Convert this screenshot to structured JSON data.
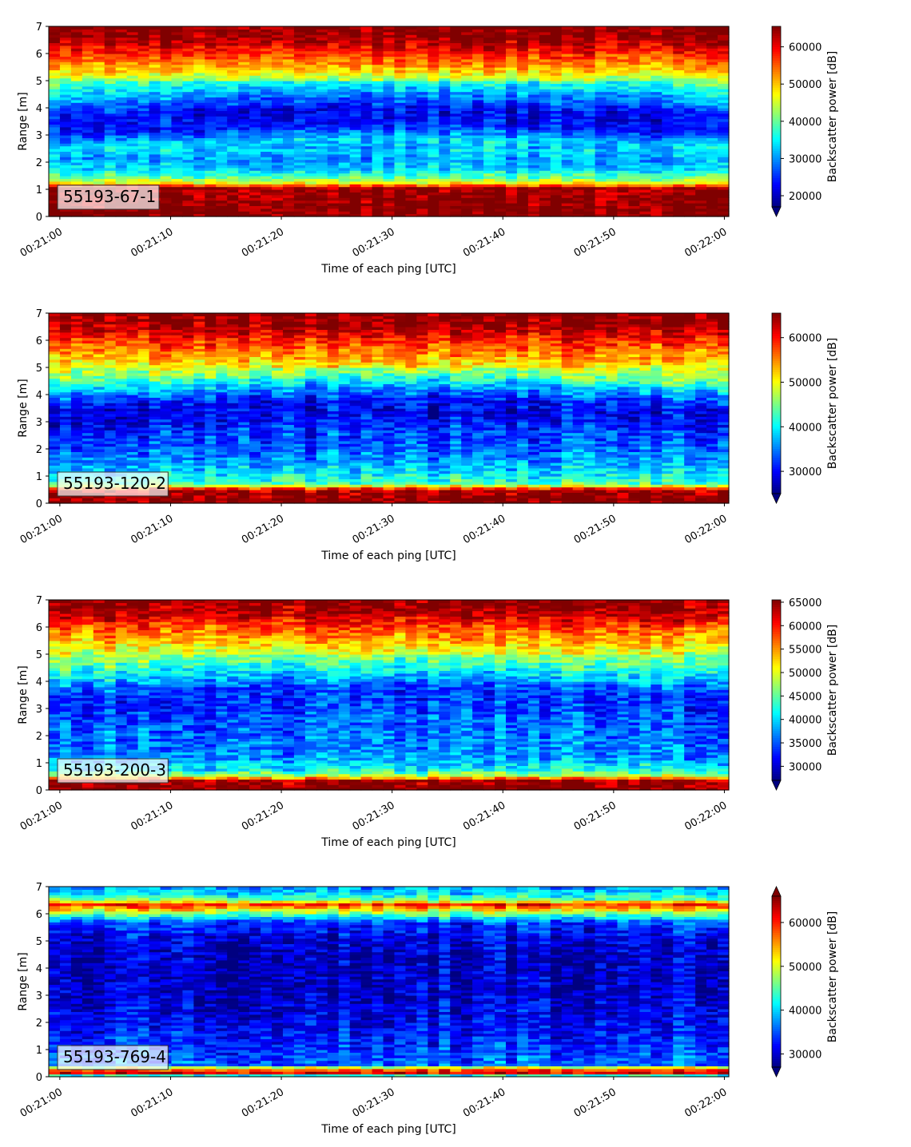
{
  "chart_data": [
    {
      "type": "heatmap",
      "annotation": "55193-67-1",
      "xlabel": "Time of each ping [UTC]",
      "ylabel": "Range [m]",
      "colorbar_label": "Backscatter power [dB]",
      "colormap": "jet",
      "x_ticks": [
        "00:21:00",
        "00:21:10",
        "00:21:20",
        "00:21:30",
        "00:21:40",
        "00:21:50",
        "00:22:00"
      ],
      "x_range": [
        "00:20:59",
        "00:22:00.4"
      ],
      "y_ticks": [
        0,
        1,
        2,
        3,
        4,
        5,
        6,
        7
      ],
      "ylim": [
        0,
        7
      ],
      "clim": [
        17000,
        65500
      ],
      "colorbar_ticks": [
        20000,
        30000,
        40000,
        50000,
        60000
      ],
      "colorbar_extend": "min",
      "profile": [
        [
          0.2,
          65500
        ],
        [
          1.05,
          64000
        ],
        [
          1.25,
          47000
        ],
        [
          1.45,
          40000
        ],
        [
          1.75,
          33500
        ],
        [
          2.1,
          30500
        ],
        [
          2.5,
          34000
        ],
        [
          3.0,
          24500
        ],
        [
          3.6,
          22500
        ],
        [
          4.2,
          30000
        ],
        [
          4.8,
          38000
        ],
        [
          5.4,
          50000
        ],
        [
          6.1,
          59000
        ],
        [
          6.6,
          64500
        ],
        [
          7.0,
          65500
        ]
      ]
    },
    {
      "type": "heatmap",
      "annotation": "55193-120-2",
      "xlabel": "Time of each ping [UTC]",
      "ylabel": "Range [m]",
      "colorbar_label": "Backscatter power [dB]",
      "colormap": "jet",
      "x_ticks": [
        "00:21:00",
        "00:21:10",
        "00:21:20",
        "00:21:30",
        "00:21:40",
        "00:21:50",
        "00:22:00"
      ],
      "x_range": [
        "00:20:59",
        "00:22:00.4"
      ],
      "y_ticks": [
        0,
        1,
        2,
        3,
        4,
        5,
        6,
        7
      ],
      "ylim": [
        0,
        7
      ],
      "clim": [
        25000,
        65500
      ],
      "colorbar_ticks": [
        30000,
        40000,
        50000,
        60000
      ],
      "colorbar_extend": "min",
      "profile": [
        [
          0.0,
          65500
        ],
        [
          0.5,
          63500
        ],
        [
          0.7,
          44000
        ],
        [
          1.0,
          40000
        ],
        [
          1.5,
          36500
        ],
        [
          2.0,
          34000
        ],
        [
          2.5,
          32000
        ],
        [
          3.0,
          29000
        ],
        [
          3.5,
          30500
        ],
        [
          4.0,
          37000
        ],
        [
          4.5,
          45000
        ],
        [
          5.2,
          52000
        ],
        [
          6.0,
          59000
        ],
        [
          6.5,
          64000
        ],
        [
          7.0,
          65500
        ]
      ]
    },
    {
      "type": "heatmap",
      "annotation": "55193-200-3",
      "xlabel": "Time of each ping [UTC]",
      "ylabel": "Range [m]",
      "colorbar_label": "Backscatter power [dB]",
      "colormap": "jet",
      "x_ticks": [
        "00:21:00",
        "00:21:10",
        "00:21:20",
        "00:21:30",
        "00:21:40",
        "00:21:50",
        "00:22:00"
      ],
      "x_range": [
        "00:20:59",
        "00:22:00.4"
      ],
      "y_ticks": [
        0,
        1,
        2,
        3,
        4,
        5,
        6,
        7
      ],
      "ylim": [
        0,
        7
      ],
      "clim": [
        27000,
        65500
      ],
      "colorbar_ticks": [
        30000,
        35000,
        40000,
        45000,
        50000,
        55000,
        60000,
        65000
      ],
      "colorbar_extend": "min",
      "profile": [
        [
          0.0,
          65500
        ],
        [
          0.35,
          64500
        ],
        [
          0.5,
          50000
        ],
        [
          0.75,
          42000
        ],
        [
          1.2,
          37500
        ],
        [
          2.0,
          36000
        ],
        [
          2.5,
          35000
        ],
        [
          3.0,
          33500
        ],
        [
          3.5,
          34500
        ],
        [
          4.0,
          40000
        ],
        [
          4.5,
          45000
        ],
        [
          5.2,
          51000
        ],
        [
          6.0,
          58000
        ],
        [
          6.5,
          63500
        ],
        [
          7.0,
          65500
        ]
      ]
    },
    {
      "type": "heatmap",
      "annotation": "55193-769-4",
      "xlabel": "Time of each ping [UTC]",
      "ylabel": "Range [m]",
      "colorbar_label": "Backscatter power [dB]",
      "colormap": "jet",
      "x_ticks": [
        "00:21:00",
        "00:21:10",
        "00:21:20",
        "00:21:30",
        "00:21:40",
        "00:21:50",
        "00:22:00"
      ],
      "x_range": [
        "00:20:59",
        "00:22:00.4"
      ],
      "y_ticks": [
        0,
        1,
        2,
        3,
        4,
        5,
        6,
        7
      ],
      "ylim": [
        0,
        7
      ],
      "clim": [
        27000,
        66000
      ],
      "colorbar_ticks": [
        30000,
        40000,
        50000,
        60000
      ],
      "colorbar_extend": "both",
      "profile": [
        [
          0.0,
          33000
        ],
        [
          0.15,
          62000
        ],
        [
          0.3,
          57000
        ],
        [
          0.45,
          36000
        ],
        [
          1.0,
          34000
        ],
        [
          2.0,
          31500
        ],
        [
          3.0,
          30000
        ],
        [
          4.0,
          29500
        ],
        [
          5.0,
          30500
        ],
        [
          5.7,
          34000
        ],
        [
          6.15,
          52000
        ],
        [
          6.35,
          60000
        ],
        [
          6.55,
          45000
        ],
        [
          6.8,
          40000
        ],
        [
          7.0,
          38000
        ]
      ]
    }
  ]
}
